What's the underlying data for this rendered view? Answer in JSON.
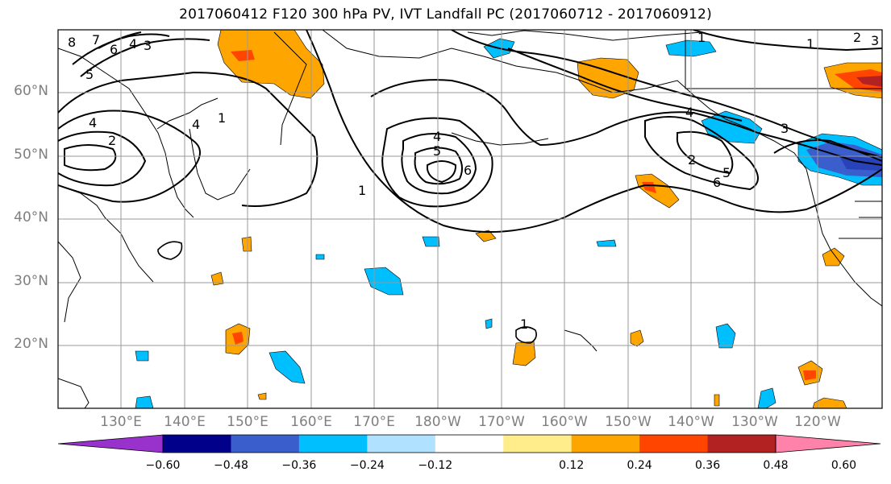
{
  "title": "2017060412 F120 300 hPa PV, IVT Landfall PC (2017060712 - 2017060912)",
  "map": {
    "lon_range": [
      120,
      250
    ],
    "lat_range": [
      10,
      70
    ],
    "lat_labels": [
      "60°N",
      "50°N",
      "40°N",
      "30°N",
      "20°N"
    ],
    "lon_labels": [
      "130°E",
      "140°E",
      "150°E",
      "160°E",
      "170°E",
      "180°W",
      "170°W",
      "160°W",
      "150°W",
      "140°W",
      "130°W",
      "120°W"
    ],
    "pv_contour_labels": [
      "8",
      "7",
      "6",
      "4",
      "3",
      "5",
      "4",
      "2",
      "1",
      "4",
      "5",
      "6",
      "1",
      "1",
      "1",
      "2",
      "3",
      "4",
      "3",
      "2",
      "5",
      "6",
      "4",
      "1"
    ]
  },
  "colorbar": {
    "tick_labels": [
      "−0.60",
      "−0.48",
      "−0.36",
      "−0.24",
      "−0.12",
      "0.12",
      "0.24",
      "0.36",
      "0.48",
      "0.60"
    ],
    "colors": [
      "#9932cc",
      "#00008b",
      "#3a5fcd",
      "#00bfff",
      "#b0e2ff",
      "#ffffff",
      "#ffec8b",
      "#ffa500",
      "#ff4500",
      "#b22222",
      "#ff82ab"
    ]
  }
}
